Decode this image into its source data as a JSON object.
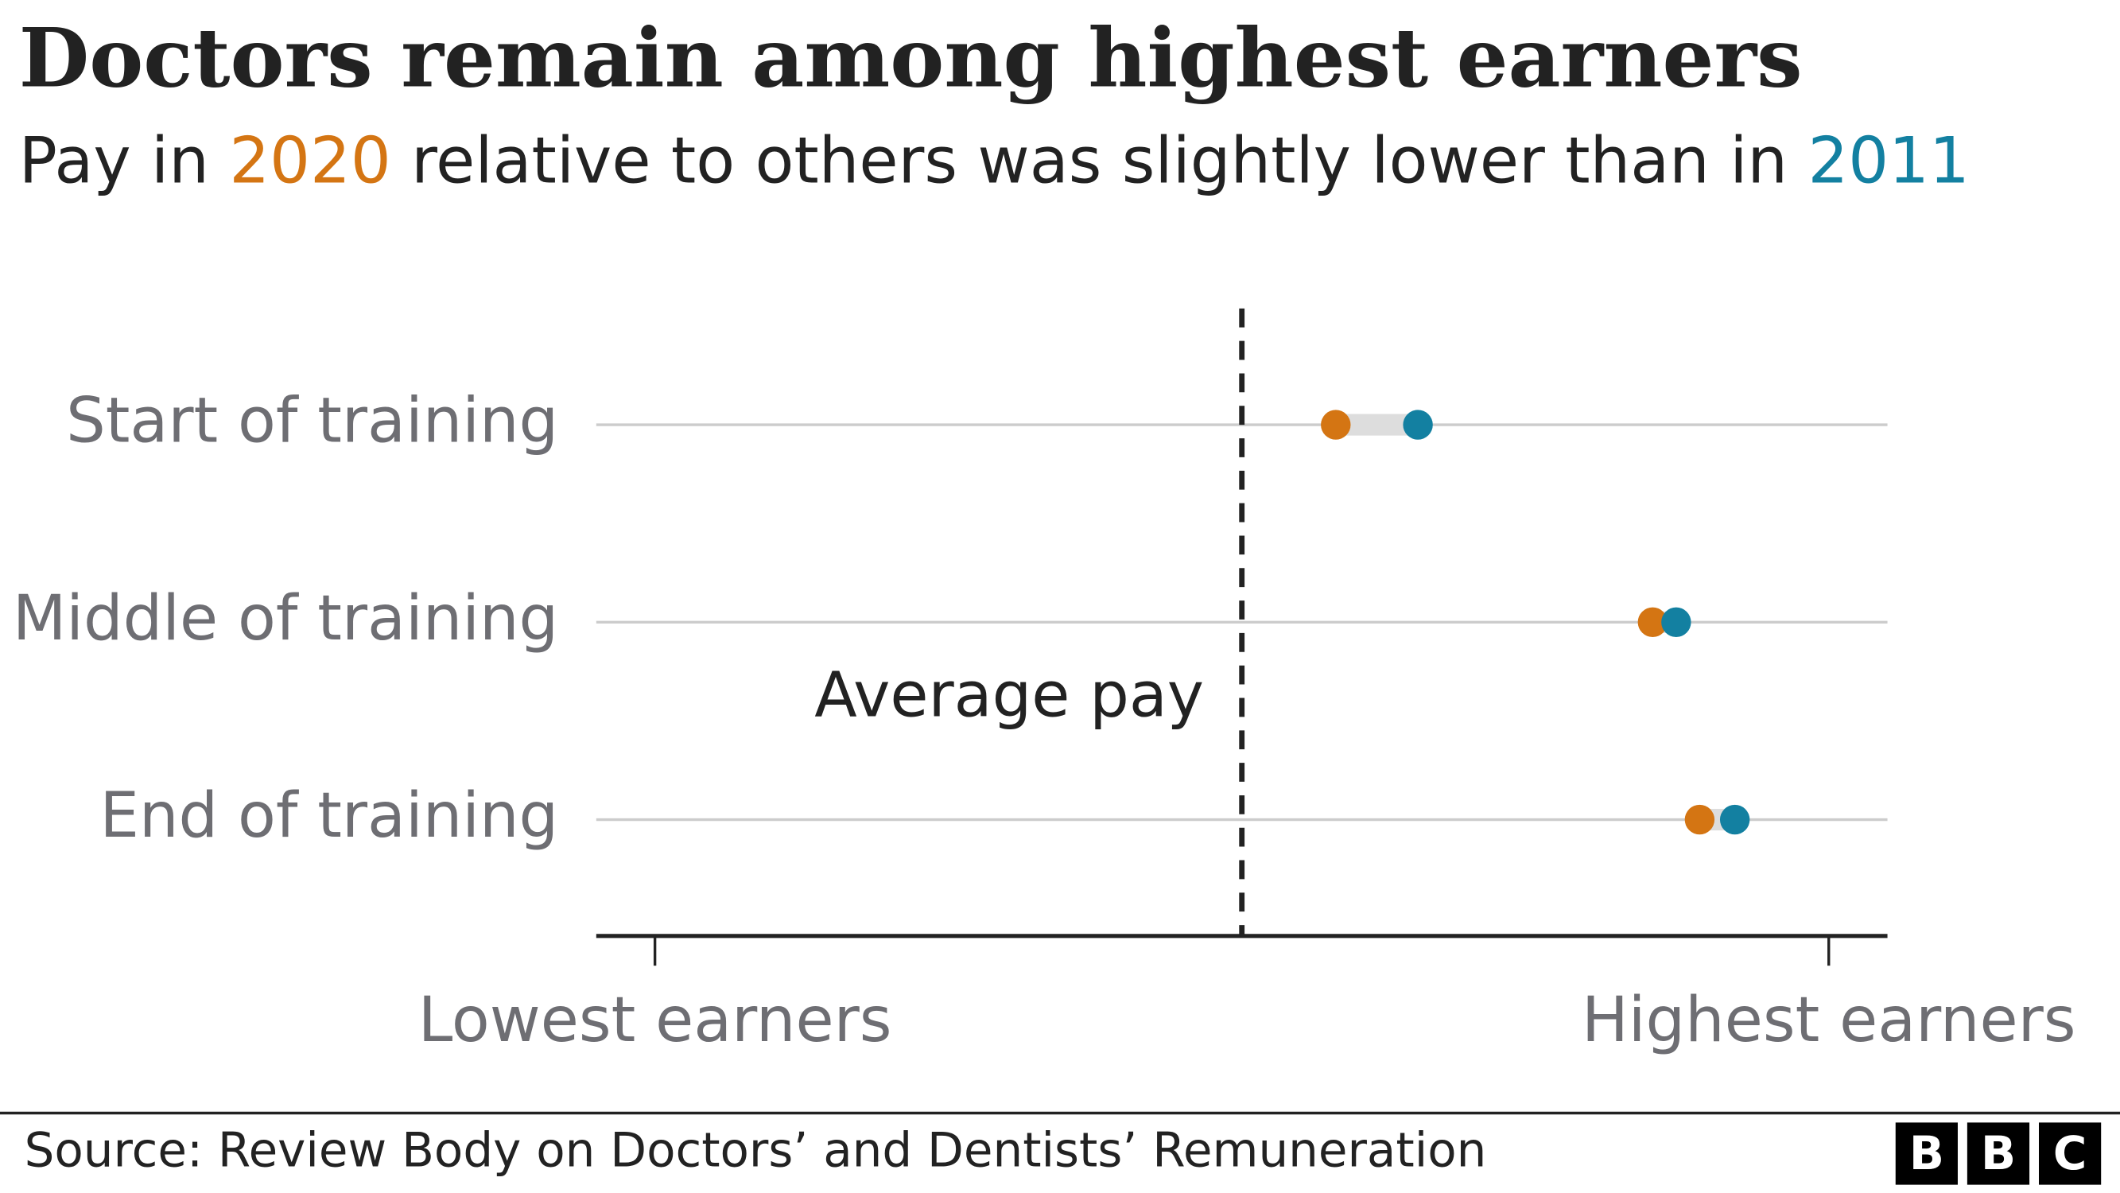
{
  "chart_data": {
    "type": "dumbbell",
    "title": "Doctors remain among highest earners",
    "subtitle_parts": [
      "Pay in",
      "relative to others was slightly lower than in"
    ],
    "categories": [
      "Start of training",
      "Middle of training",
      "End of training"
    ],
    "series": [
      {
        "name": "2020",
        "color": "#d47513",
        "values": [
          58,
          85,
          89
        ]
      },
      {
        "name": "2011",
        "color": "#1380a1",
        "values": [
          65,
          87,
          92
        ]
      }
    ],
    "xlim": [
      -5,
      105
    ],
    "xticks": [
      {
        "value": 0,
        "label": "Lowest earners"
      },
      {
        "value": 100,
        "label": "Highest earners"
      }
    ],
    "reference_line": {
      "value": 50,
      "label": "Average pay"
    },
    "grid": true,
    "source": "Source: Review Body on Doctors’ and Dentists’ Remuneration",
    "logo": [
      "B",
      "B",
      "C"
    ]
  }
}
